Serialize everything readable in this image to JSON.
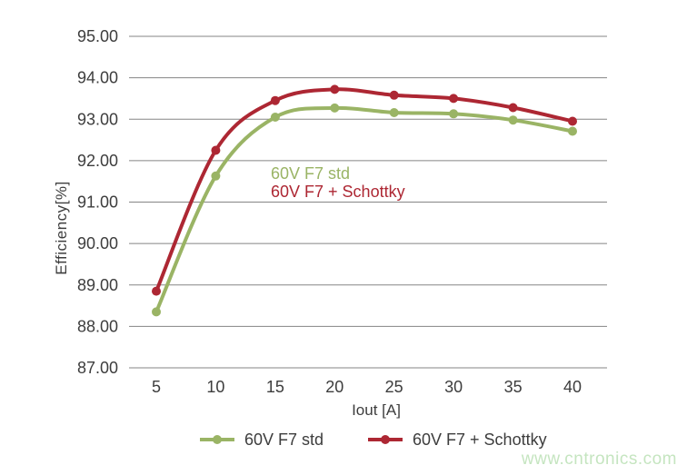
{
  "chart_data": {
    "type": "line",
    "title": "",
    "xlabel": "Iout [A]",
    "ylabel": "Efficiency[%]",
    "x": [
      5,
      10,
      15,
      20,
      25,
      30,
      35,
      40
    ],
    "series": [
      {
        "name": "60V F7 std",
        "color": "#9ab465",
        "values": [
          88.35,
          91.63,
          93.05,
          93.27,
          93.16,
          93.13,
          92.98,
          92.71
        ]
      },
      {
        "name": "60V F7 + Schottky",
        "color": "#ad2733",
        "values": [
          88.85,
          92.25,
          93.45,
          93.72,
          93.58,
          93.5,
          93.28,
          92.95
        ]
      }
    ],
    "ylim": [
      87,
      95
    ],
    "ytick_step": 1,
    "ytick_decimals": 2,
    "grid": "horizontal",
    "grid_color": "#858585",
    "tick_color": "#3d3d3d",
    "legend_position": "bottom",
    "annotation_note": "series names repeated inside plot area in series colors"
  },
  "watermark": {
    "text": "www.cntronics.com",
    "color": "#c5e5c0"
  }
}
